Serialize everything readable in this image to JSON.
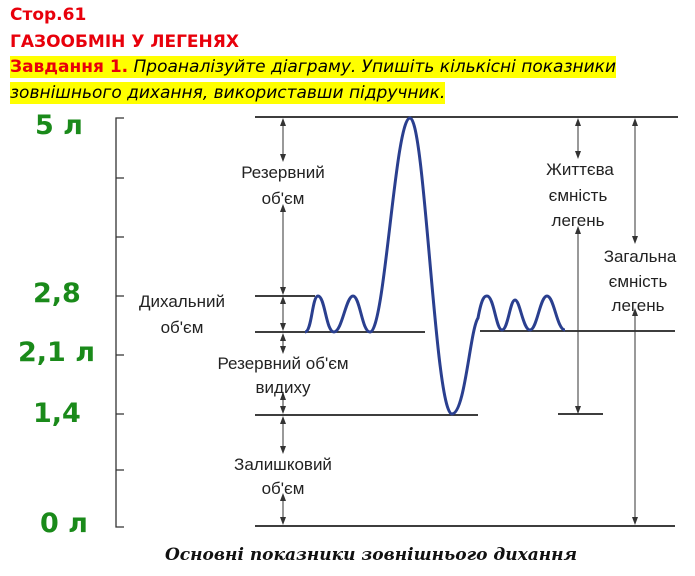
{
  "header": {
    "page": "Стор.61",
    "topic": "ГАЗООБМІН У ЛЕГЕНЯХ",
    "task_label": "Завдання 1.",
    "task_text_1": " Проаналізуйте діаграму. Упишіть кількісні показники",
    "task_text_2": "зовнішнього дихання, використавши підручник."
  },
  "values": {
    "v5": "5 л",
    "v28": "2,8",
    "v21": "2,1 л",
    "v14": "1,4",
    "v0": "0 л"
  },
  "diagram": {
    "reserve_inhale": [
      "Резервний",
      "об'єм"
    ],
    "tidal": [
      "Дихальний",
      "об'єм"
    ],
    "reserve_exhale": [
      "Резервний об'єм",
      "видиху"
    ],
    "residual": [
      "Залишковий",
      "об'єм"
    ],
    "vital": [
      "Життєва",
      "ємність",
      "легень"
    ],
    "total": [
      "Загальна",
      "ємність",
      "легень"
    ],
    "caption": "Основні показники зовнішнього дихання",
    "curve_color": "#2a3f8f",
    "value_color": "#1a8a1a"
  }
}
